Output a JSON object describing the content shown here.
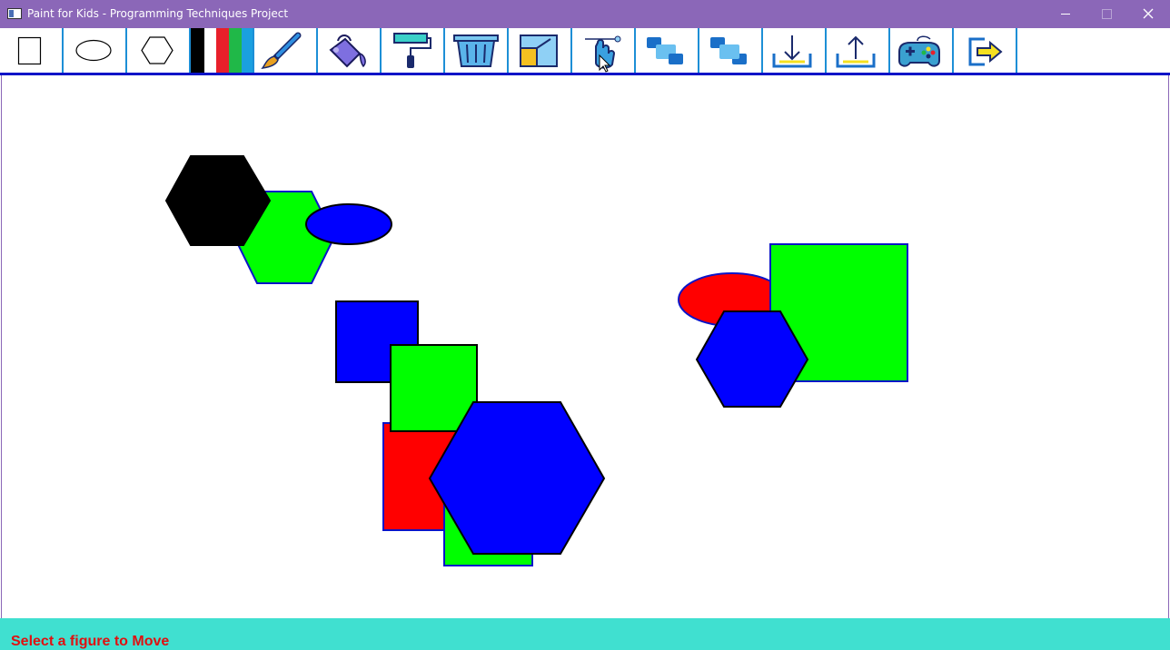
{
  "window": {
    "title": "Paint for Kids - Programming Techniques Project",
    "controls": [
      "minimize",
      "maximize",
      "close"
    ]
  },
  "toolbar": {
    "items": [
      {
        "name": "rectangle-tool",
        "icon": "rectangle-icon"
      },
      {
        "name": "ellipse-tool",
        "icon": "ellipse-icon"
      },
      {
        "name": "hexagon-tool",
        "icon": "hexagon-icon"
      },
      {
        "name": "color-palette",
        "icon": "color-swatch-icon",
        "colors": [
          "#000000",
          "#ffffff",
          "#e8202a",
          "#20b848",
          "#1aa0e0"
        ]
      },
      {
        "name": "draw-color-tool",
        "icon": "brush-icon"
      },
      {
        "name": "fill-color-tool",
        "icon": "paint-bucket-icon"
      },
      {
        "name": "paint-roller-tool",
        "icon": "paint-roller-icon"
      },
      {
        "name": "delete-tool",
        "icon": "trash-icon"
      },
      {
        "name": "resize-tool",
        "icon": "resize-icon"
      },
      {
        "name": "move-tool",
        "icon": "hand-pointer-icon"
      },
      {
        "name": "send-to-back-tool",
        "icon": "send-back-icon"
      },
      {
        "name": "bring-to-front-tool",
        "icon": "bring-front-icon"
      },
      {
        "name": "load-tool",
        "icon": "download-tray-icon"
      },
      {
        "name": "save-tool",
        "icon": "upload-tray-icon"
      },
      {
        "name": "play-mode-tool",
        "icon": "gamepad-icon"
      },
      {
        "name": "exit-tool",
        "icon": "exit-icon"
      }
    ],
    "accent": "#0a14c8"
  },
  "canvas": {
    "figures": [
      {
        "type": "hexagon",
        "fill": "#000000",
        "stroke": "#000000"
      },
      {
        "type": "hexagon",
        "fill": "#00ff00",
        "stroke": "#0a14c8"
      },
      {
        "type": "ellipse",
        "fill": "#0000ff",
        "stroke": "#000000"
      },
      {
        "type": "rectangle",
        "fill": "#0000ff",
        "stroke": "#000000"
      },
      {
        "type": "rectangle",
        "fill": "#ff0000",
        "stroke": "#0a14c8"
      },
      {
        "type": "rectangle",
        "fill": "#00ff00",
        "stroke": "#0a14c8"
      },
      {
        "type": "rectangle",
        "fill": "#00ff00",
        "stroke": "#000000"
      },
      {
        "type": "hexagon",
        "fill": "#0000ff",
        "stroke": "#000000"
      },
      {
        "type": "ellipse",
        "fill": "#ff0000",
        "stroke": "#0a14c8"
      },
      {
        "type": "rectangle",
        "fill": "#00ff00",
        "stroke": "#0a14c8"
      },
      {
        "type": "hexagon",
        "fill": "#0000ff",
        "stroke": "#000000"
      }
    ]
  },
  "status": {
    "message": "Select a figure to Move",
    "color": "#e01010",
    "background": "#40e0d0"
  }
}
